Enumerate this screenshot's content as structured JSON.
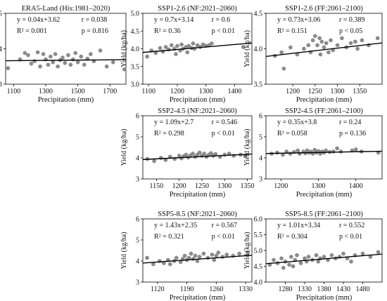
{
  "chart_data": [
    {
      "id": "era5",
      "type": "scatter",
      "title": "ERA5-Land (His:1981–2020)",
      "equation": "y = 0.04x+3.62",
      "r_text": "r = 0.038",
      "r2_text": "R² = 0.001",
      "p_text": "p = 0.816",
      "xlabel": "Precipitation (mm)",
      "ylabel": "Yield (kg/ha)",
      "xlim": [
        1050,
        1800
      ],
      "ylim": [
        3,
        5
      ],
      "xticks": [
        1100,
        1300,
        1500,
        1700
      ],
      "yticks": [
        3,
        4,
        5
      ],
      "fit": {
        "slope": 0.04,
        "intercept": 3.62,
        "scale": 1000
      },
      "points": [
        [
          1065,
          3.45
        ],
        [
          1140,
          3.7
        ],
        [
          1170,
          3.88
        ],
        [
          1190,
          3.82
        ],
        [
          1210,
          3.58
        ],
        [
          1230,
          3.65
        ],
        [
          1250,
          3.9
        ],
        [
          1265,
          3.5
        ],
        [
          1285,
          3.85
        ],
        [
          1300,
          3.7
        ],
        [
          1315,
          3.55
        ],
        [
          1330,
          3.78
        ],
        [
          1345,
          3.62
        ],
        [
          1360,
          3.85
        ],
        [
          1375,
          3.5
        ],
        [
          1390,
          3.68
        ],
        [
          1405,
          3.75
        ],
        [
          1420,
          3.6
        ],
        [
          1440,
          3.82
        ],
        [
          1455,
          3.55
        ],
        [
          1470,
          3.7
        ],
        [
          1485,
          3.88
        ],
        [
          1500,
          3.62
        ],
        [
          1520,
          3.78
        ],
        [
          1540,
          3.55
        ],
        [
          1560,
          3.72
        ],
        [
          1580,
          3.85
        ],
        [
          1600,
          3.65
        ],
        [
          1640,
          3.95
        ],
        [
          1680,
          3.5
        ],
        [
          1720,
          3.62
        ],
        [
          1790,
          3.42
        ]
      ]
    },
    {
      "id": "ssp126nf",
      "type": "scatter",
      "title": "SSP1-2.6 (NF:2021–2060)",
      "equation": "y = 0.7x+3.14",
      "r_text": "r = 0.6",
      "r2_text": "R² = 0.36",
      "p_text": "p < 0.01",
      "xlabel": "Precipitation (mm)",
      "ylabel": "Yield (kg/ha)",
      "xlim": [
        1080,
        1460
      ],
      "ylim": [
        3,
        5
      ],
      "xticks": [
        1100,
        1200,
        1300,
        1400
      ],
      "yticks": [
        3.0,
        3.5,
        4.0,
        4.5,
        5.0
      ],
      "fit": {
        "slope": 0.7,
        "intercept": 3.14,
        "scale": 1000
      },
      "points": [
        [
          1095,
          3.78
        ],
        [
          1110,
          3.95
        ],
        [
          1125,
          3.88
        ],
        [
          1140,
          4.02
        ],
        [
          1150,
          3.92
        ],
        [
          1160,
          4.05
        ],
        [
          1170,
          3.98
        ],
        [
          1180,
          4.1
        ],
        [
          1190,
          4.0
        ],
        [
          1195,
          3.85
        ],
        [
          1200,
          4.08
        ],
        [
          1210,
          3.95
        ],
        [
          1215,
          4.12
        ],
        [
          1220,
          4.0
        ],
        [
          1230,
          4.05
        ],
        [
          1235,
          3.9
        ],
        [
          1240,
          4.08
        ],
        [
          1250,
          4.02
        ],
        [
          1255,
          4.15
        ],
        [
          1260,
          4.0
        ],
        [
          1270,
          4.1
        ],
        [
          1280,
          4.05
        ],
        [
          1290,
          4.12
        ],
        [
          1300,
          4.08
        ],
        [
          1310,
          4.1
        ],
        [
          1320,
          4.15
        ],
        [
          1430,
          4.05
        ]
      ]
    },
    {
      "id": "ssp126ff",
      "type": "scatter",
      "title": "SSP1-2.6 (FF:2061–2100)",
      "equation": "y = 0.73x+3.06",
      "r_text": "r = 0.389",
      "r2_text": "R² = 0.151",
      "p_text": "p < 0.05",
      "xlabel": "Precipitation (mm)",
      "ylabel": "Yield (kg/ha)",
      "xlim": [
        1140,
        1400
      ],
      "ylim": [
        3.5,
        4.5
      ],
      "xticks": [
        1200,
        1250,
        1300,
        1350
      ],
      "yticks": [
        3.5,
        4.0,
        4.5
      ],
      "fit": {
        "slope": 0.73,
        "intercept": 3.06,
        "scale": 1000
      },
      "points": [
        [
          1160,
          3.9
        ],
        [
          1175,
          3.95
        ],
        [
          1180,
          3.72
        ],
        [
          1195,
          4.02
        ],
        [
          1210,
          3.92
        ],
        [
          1225,
          4.0
        ],
        [
          1235,
          4.05
        ],
        [
          1240,
          3.95
        ],
        [
          1245,
          4.12
        ],
        [
          1250,
          4.18
        ],
        [
          1255,
          4.05
        ],
        [
          1260,
          4.15
        ],
        [
          1262,
          3.92
        ],
        [
          1265,
          4.1
        ],
        [
          1270,
          4.02
        ],
        [
          1275,
          4.08
        ],
        [
          1280,
          3.95
        ],
        [
          1285,
          4.12
        ],
        [
          1290,
          3.98
        ],
        [
          1300,
          4.05
        ],
        [
          1310,
          4.15
        ],
        [
          1320,
          4.02
        ],
        [
          1330,
          4.08
        ],
        [
          1340,
          4.1
        ],
        [
          1345,
          4.0
        ],
        [
          1355,
          4.12
        ],
        [
          1370,
          4.05
        ],
        [
          1390,
          4.15
        ]
      ]
    },
    {
      "id": "ssp245nf",
      "type": "scatter",
      "title": "SSP2-4.5 (NF:2021–2060)",
      "equation": "y = 1.09x+2.7",
      "r_text": "r = 0.546",
      "r2_text": "R² = 0.298",
      "p_text": "p < 0.01",
      "xlabel": "Precipitation (mm)",
      "ylabel": "Yield (kg/ha)",
      "xlim": [
        1120,
        1360
      ],
      "ylim": [
        3,
        6
      ],
      "xticks": [
        1150,
        1200,
        1250,
        1300,
        1350
      ],
      "yticks": [
        3,
        4,
        5,
        6
      ],
      "fit": {
        "slope": 1.09,
        "intercept": 2.7,
        "scale": 1000
      },
      "points": [
        [
          1130,
          3.95
        ],
        [
          1145,
          3.85
        ],
        [
          1160,
          4.0
        ],
        [
          1170,
          3.9
        ],
        [
          1180,
          4.05
        ],
        [
          1190,
          3.95
        ],
        [
          1200,
          4.1
        ],
        [
          1205,
          3.98
        ],
        [
          1210,
          4.08
        ],
        [
          1215,
          4.15
        ],
        [
          1220,
          4.02
        ],
        [
          1225,
          4.12
        ],
        [
          1230,
          4.2
        ],
        [
          1235,
          4.05
        ],
        [
          1240,
          4.15
        ],
        [
          1245,
          4.25
        ],
        [
          1250,
          4.1
        ],
        [
          1255,
          4.2
        ],
        [
          1260,
          4.05
        ],
        [
          1265,
          4.15
        ],
        [
          1270,
          4.22
        ],
        [
          1275,
          4.1
        ],
        [
          1280,
          4.18
        ],
        [
          1290,
          4.05
        ],
        [
          1300,
          4.15
        ],
        [
          1310,
          4.2
        ],
        [
          1320,
          4.1
        ],
        [
          1335,
          4.15
        ],
        [
          1345,
          4.08
        ]
      ]
    },
    {
      "id": "ssp245ff",
      "type": "scatter",
      "title": "SSP2-4.5 (FF:2061–2100)",
      "equation": "y = 0.35x+3.8",
      "r_text": "r = 0.24",
      "r2_text": "R² = 0.058",
      "p_text": "p = 0.136",
      "xlabel": "Precipitation (mm)",
      "ylabel": "Yield (kg/ha)",
      "xlim": [
        1160,
        1470
      ],
      "ylim": [
        3,
        6
      ],
      "xticks": [
        1200,
        1300,
        1400
      ],
      "yticks": [
        3,
        4,
        5,
        6
      ],
      "fit": {
        "slope": 0.35,
        "intercept": 3.8,
        "scale": 1000
      },
      "points": [
        [
          1175,
          4.2
        ],
        [
          1190,
          4.25
        ],
        [
          1205,
          4.15
        ],
        [
          1215,
          4.3
        ],
        [
          1225,
          4.2
        ],
        [
          1235,
          4.28
        ],
        [
          1245,
          4.35
        ],
        [
          1250,
          4.2
        ],
        [
          1260,
          4.3
        ],
        [
          1265,
          4.22
        ],
        [
          1270,
          4.35
        ],
        [
          1275,
          4.25
        ],
        [
          1280,
          4.3
        ],
        [
          1285,
          4.2
        ],
        [
          1290,
          4.38
        ],
        [
          1295,
          4.25
        ],
        [
          1300,
          4.32
        ],
        [
          1305,
          4.2
        ],
        [
          1310,
          4.3
        ],
        [
          1315,
          4.25
        ],
        [
          1320,
          4.35
        ],
        [
          1330,
          4.28
        ],
        [
          1340,
          4.3
        ],
        [
          1350,
          4.45
        ],
        [
          1360,
          4.3
        ],
        [
          1390,
          4.35
        ],
        [
          1400,
          4.4
        ],
        [
          1415,
          4.3
        ],
        [
          1460,
          4.25
        ]
      ]
    },
    {
      "id": "ssp585nf",
      "type": "scatter",
      "title": "SSP5-8.5 (NF:2021–2060)",
      "equation": "y = 1.43x+2.35",
      "r_text": "r = 0.567",
      "r2_text": "R² = 0.321",
      "p_text": "p < 0.01",
      "xlabel": "Precipitation (mm)",
      "ylabel": "Yield (kg/ha)",
      "xlim": [
        1085,
        1345
      ],
      "ylim": [
        3,
        6
      ],
      "xticks": [
        1120,
        1190,
        1260,
        1330
      ],
      "yticks": [
        3,
        4,
        5,
        6
      ],
      "fit": {
        "slope": 1.43,
        "intercept": 2.35,
        "scale": 1000
      },
      "points": [
        [
          1095,
          4.15
        ],
        [
          1110,
          3.85
        ],
        [
          1125,
          4.0
        ],
        [
          1135,
          3.9
        ],
        [
          1145,
          4.05
        ],
        [
          1150,
          3.85
        ],
        [
          1160,
          4.0
        ],
        [
          1165,
          4.15
        ],
        [
          1175,
          3.95
        ],
        [
          1180,
          4.1
        ],
        [
          1185,
          4.25
        ],
        [
          1190,
          4.05
        ],
        [
          1195,
          4.15
        ],
        [
          1200,
          4.35
        ],
        [
          1205,
          4.1
        ],
        [
          1210,
          4.25
        ],
        [
          1215,
          4.0
        ],
        [
          1220,
          4.2
        ],
        [
          1230,
          4.35
        ],
        [
          1240,
          4.15
        ],
        [
          1250,
          4.3
        ],
        [
          1255,
          4.05
        ],
        [
          1260,
          4.25
        ],
        [
          1265,
          4.4
        ],
        [
          1275,
          4.2
        ],
        [
          1285,
          4.3
        ],
        [
          1300,
          4.25
        ],
        [
          1315,
          4.35
        ],
        [
          1335,
          4.4
        ]
      ]
    },
    {
      "id": "ssp585ff",
      "type": "scatter",
      "title": "SSP5-8.5 (FF:2061–2100)",
      "equation": "y = 1.01x+3.34",
      "r_text": "r = 0.552",
      "r2_text": "R² = 0.304",
      "p_text": "p < 0.01",
      "xlabel": "Precipitation (mm)",
      "ylabel": "Yield (kg/ha)",
      "xlim": [
        1230,
        1530
      ],
      "ylim": [
        4.0,
        6.0
      ],
      "xticks": [
        1280,
        1330,
        1380,
        1430,
        1480
      ],
      "yticks": [
        4.0,
        4.5,
        5.0,
        5.5,
        6.0
      ],
      "fit": {
        "slope": 1.01,
        "intercept": 3.34,
        "scale": 1000
      },
      "points": [
        [
          1240,
          4.55
        ],
        [
          1250,
          4.7
        ],
        [
          1260,
          4.6
        ],
        [
          1270,
          4.75
        ],
        [
          1275,
          4.45
        ],
        [
          1280,
          4.65
        ],
        [
          1290,
          4.55
        ],
        [
          1295,
          4.8
        ],
        [
          1300,
          4.5
        ],
        [
          1305,
          4.7
        ],
        [
          1310,
          4.85
        ],
        [
          1320,
          4.6
        ],
        [
          1330,
          4.75
        ],
        [
          1335,
          4.65
        ],
        [
          1340,
          4.8
        ],
        [
          1350,
          4.7
        ],
        [
          1360,
          4.85
        ],
        [
          1365,
          4.65
        ],
        [
          1370,
          4.75
        ],
        [
          1380,
          4.8
        ],
        [
          1390,
          4.7
        ],
        [
          1400,
          4.85
        ],
        [
          1410,
          4.75
        ],
        [
          1420,
          4.8
        ],
        [
          1430,
          4.9
        ],
        [
          1440,
          4.75
        ],
        [
          1450,
          4.65
        ],
        [
          1460,
          4.85
        ],
        [
          1480,
          4.9
        ],
        [
          1500,
          4.8
        ],
        [
          1520,
          4.95
        ]
      ]
    }
  ]
}
